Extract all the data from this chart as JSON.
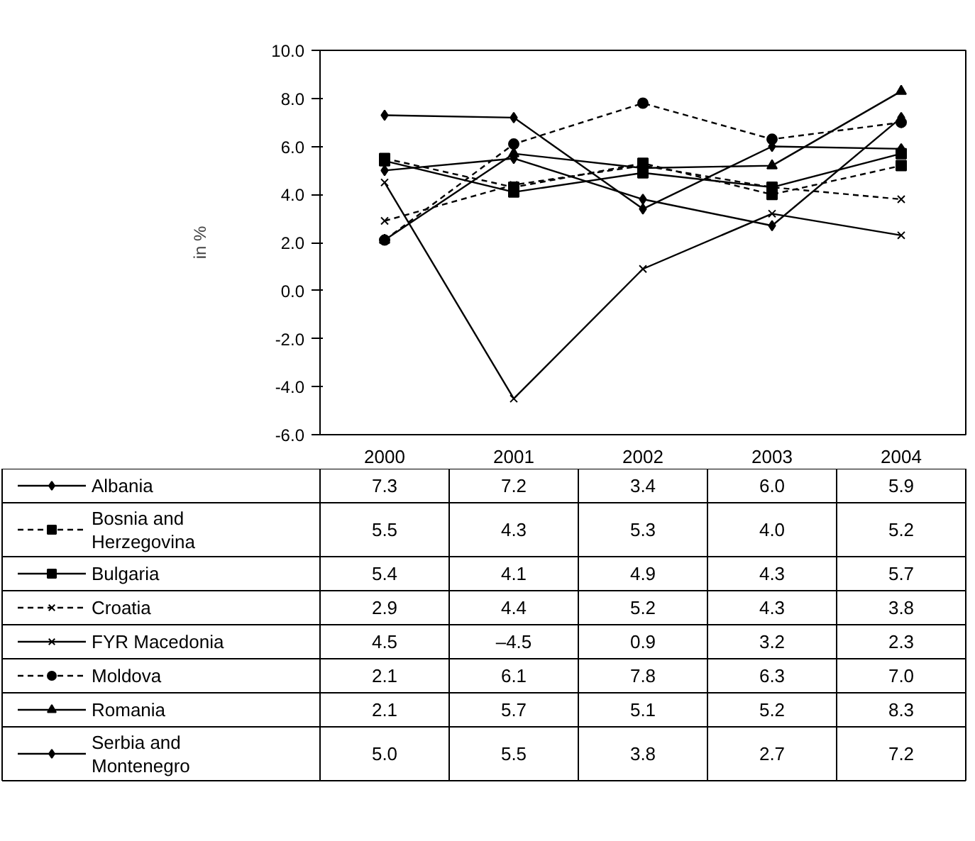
{
  "chart_data": {
    "type": "line",
    "ylabel": "in %",
    "categories": [
      "2000",
      "2001",
      "2002",
      "2003",
      "2004"
    ],
    "ylim": [
      -6,
      10
    ],
    "yticks": [
      {
        "value": -6,
        "label": "-6.0"
      },
      {
        "value": -4,
        "label": "-4.0"
      },
      {
        "value": -2,
        "label": "-2.0"
      },
      {
        "value": 0,
        "label": "0.0"
      },
      {
        "value": 2,
        "label": "2.0"
      },
      {
        "value": 4,
        "label": "4.0"
      },
      {
        "value": 6,
        "label": "6.0"
      },
      {
        "value": 8,
        "label": "8.0"
      },
      {
        "value": 10,
        "label": "10.0"
      }
    ],
    "grid": false,
    "legend": "bottom",
    "series": [
      {
        "name": "Albania",
        "color": "#000000",
        "marker": "diamond",
        "line_style": "solid",
        "values": [
          7.3,
          7.2,
          3.4,
          6.0,
          5.9
        ],
        "value_labels": [
          "7.3",
          "7.2",
          "3.4",
          "6.0",
          "5.9"
        ]
      },
      {
        "name": "Bosnia and Herzegovina",
        "color": "#000000",
        "marker": "square",
        "line_style": "dashed",
        "values": [
          5.5,
          4.3,
          5.3,
          4.0,
          5.2
        ],
        "value_labels": [
          "5.5",
          "4.3",
          "5.3",
          "4.0",
          "5.2"
        ]
      },
      {
        "name": "Bulgaria",
        "color": "#000000",
        "marker": "square",
        "line_style": "solid",
        "values": [
          5.4,
          4.1,
          4.9,
          4.3,
          5.7
        ],
        "value_labels": [
          "5.4",
          "4.1",
          "4.9",
          "4.3",
          "5.7"
        ]
      },
      {
        "name": "Croatia",
        "color": "#000000",
        "marker": "cross",
        "line_style": "dashed",
        "values": [
          2.9,
          4.4,
          5.2,
          4.3,
          3.8
        ],
        "value_labels": [
          "2.9",
          "4.4",
          "5.2",
          "4.3",
          "3.8"
        ]
      },
      {
        "name": "FYR Macedonia",
        "color": "#000000",
        "marker": "cross",
        "line_style": "solid",
        "values": [
          4.5,
          -4.5,
          0.9,
          3.2,
          2.3
        ],
        "value_labels": [
          "4.5",
          "–4.5",
          "0.9",
          "3.2",
          "2.3"
        ]
      },
      {
        "name": "Moldova",
        "color": "#000000",
        "marker": "circle",
        "line_style": "dashed",
        "values": [
          2.1,
          6.1,
          7.8,
          6.3,
          7.0
        ],
        "value_labels": [
          "2.1",
          "6.1",
          "7.8",
          "6.3",
          "7.0"
        ]
      },
      {
        "name": "Romania",
        "color": "#000000",
        "marker": "triangle",
        "line_style": "solid",
        "values": [
          2.1,
          5.7,
          5.1,
          5.2,
          8.3
        ],
        "value_labels": [
          "2.1",
          "5.7",
          "5.1",
          "5.2",
          "8.3"
        ]
      },
      {
        "name": "Serbia and Montenegro",
        "color": "#000000",
        "marker": "diamond",
        "line_style": "solid",
        "values": [
          5.0,
          5.5,
          3.8,
          2.7,
          7.2
        ],
        "value_labels": [
          "5.0",
          "5.5",
          "3.8",
          "2.7",
          "7.2"
        ]
      }
    ]
  }
}
